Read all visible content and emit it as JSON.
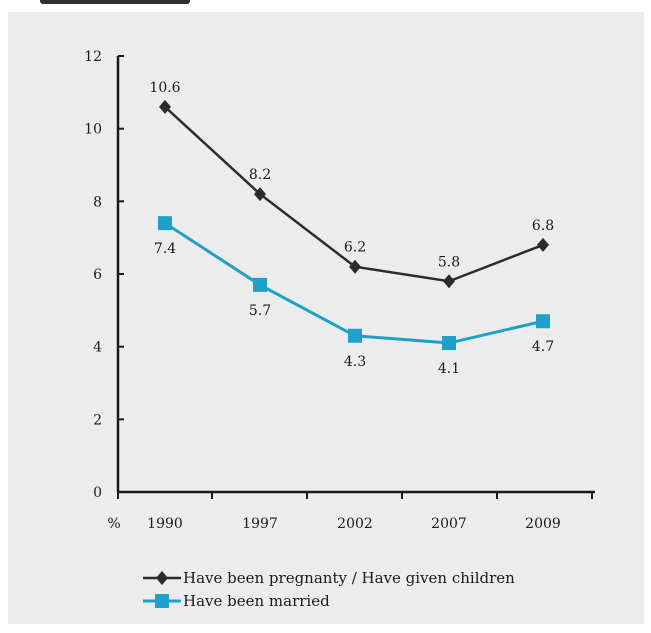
{
  "chart_data": {
    "type": "line",
    "categories": [
      "1990",
      "1997",
      "2002",
      "2007",
      "2009"
    ],
    "ylim": [
      0,
      12
    ],
    "yticks": [
      0,
      2,
      4,
      6,
      8,
      10,
      12
    ],
    "y_unit": "%",
    "grid": false,
    "legend_position": "bottom-left",
    "series": [
      {
        "name": "Have been pregnanty / Have given children",
        "values": [
          10.6,
          8.2,
          6.2,
          5.8,
          6.8
        ],
        "labels": [
          "10.6",
          "8.2",
          "6.2",
          "5.8",
          "6.8"
        ],
        "color": "#2b2b2b",
        "marker": "diamond",
        "label_side": "above"
      },
      {
        "name": "Have been married",
        "values": [
          7.4,
          5.7,
          4.3,
          4.1,
          4.7
        ],
        "labels": [
          "7.4",
          "5.7",
          "4.3",
          "4.1",
          "4.7"
        ],
        "color": "#1fa0c8",
        "marker": "square",
        "label_side": "below"
      }
    ]
  }
}
